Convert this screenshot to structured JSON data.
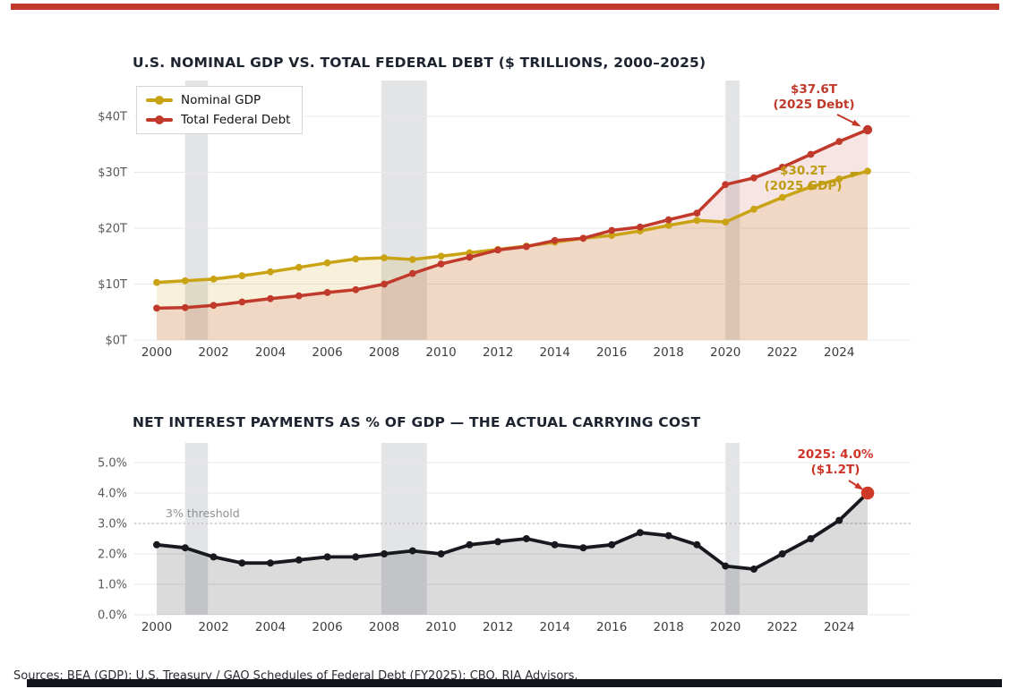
{
  "page": {
    "accent_bar_color": "#c0392b",
    "footer_bar_color": "#14161e"
  },
  "footer": {
    "sources": "Sources: BEA (GDP); U.S. Treasury / GAO Schedules of Federal Debt (FY2025); CBO. RIA Advisors."
  },
  "chart_data": [
    {
      "type": "line",
      "title": "U.S. NOMINAL GDP VS. TOTAL FEDERAL DEBT ($ TRILLIONS, 2000–2025)",
      "x": [
        2000,
        2001,
        2002,
        2003,
        2004,
        2005,
        2006,
        2007,
        2008,
        2009,
        2010,
        2011,
        2012,
        2013,
        2014,
        2015,
        2016,
        2017,
        2018,
        2019,
        2020,
        2021,
        2022,
        2023,
        2024,
        2025
      ],
      "series": [
        {
          "name": "Nominal GDP",
          "color": "#c9a313",
          "fill": "rgba(201,163,19,0.15)",
          "values": [
            10.3,
            10.6,
            10.9,
            11.5,
            12.2,
            13.0,
            13.8,
            14.5,
            14.7,
            14.4,
            15.0,
            15.6,
            16.2,
            16.8,
            17.5,
            18.2,
            18.7,
            19.5,
            20.5,
            21.4,
            21.1,
            23.4,
            25.5,
            27.4,
            28.8,
            30.2
          ]
        },
        {
          "name": "Total Federal Debt",
          "color": "#c0392b",
          "fill": "rgba(192,57,43,0.13)",
          "values": [
            5.7,
            5.8,
            6.2,
            6.8,
            7.4,
            7.9,
            8.5,
            9.0,
            10.0,
            11.9,
            13.6,
            14.8,
            16.1,
            16.7,
            17.8,
            18.2,
            19.6,
            20.2,
            21.5,
            22.7,
            27.8,
            29.0,
            30.9,
            33.2,
            35.5,
            37.6
          ]
        }
      ],
      "ylim": [
        0,
        45
      ],
      "yticks": [
        [
          0,
          "$0T"
        ],
        [
          10,
          "$10T"
        ],
        [
          20,
          "$20T"
        ],
        [
          30,
          "$30T"
        ],
        [
          40,
          "$40T"
        ]
      ],
      "xticks": [
        2000,
        2002,
        2004,
        2006,
        2008,
        2010,
        2012,
        2014,
        2016,
        2018,
        2020,
        2022,
        2024
      ],
      "recession_bands": [
        [
          2001,
          2001.8
        ],
        [
          2007.9,
          2009.5
        ],
        [
          2020,
          2020.5
        ]
      ],
      "band_color": "rgba(168,172,176,0.32)",
      "grid": true,
      "legend_position": "upper left",
      "annotations": {
        "debt": {
          "line1": "$37.6T",
          "line2": "(2025 Debt)",
          "color": "#c0392b"
        },
        "gdp": {
          "line1": "$30.2T",
          "line2": "(2025 GDP)",
          "color": "#bd9b13"
        }
      }
    },
    {
      "type": "line",
      "title": "NET INTEREST PAYMENTS AS % OF GDP — THE ACTUAL CARRYING COST",
      "x": [
        2000,
        2001,
        2002,
        2003,
        2004,
        2005,
        2006,
        2007,
        2008,
        2009,
        2010,
        2011,
        2012,
        2013,
        2014,
        2015,
        2016,
        2017,
        2018,
        2019,
        2020,
        2021,
        2022,
        2023,
        2024,
        2025
      ],
      "series": [
        {
          "name": "Net interest payments as % of GDP",
          "color": "#17191f",
          "fill": "rgba(30,33,40,0.16)",
          "values": [
            2.3,
            2.2,
            1.9,
            1.7,
            1.7,
            1.8,
            1.9,
            1.9,
            2.0,
            2.1,
            2.0,
            2.3,
            2.4,
            2.5,
            2.3,
            2.2,
            2.3,
            2.7,
            2.6,
            2.3,
            1.6,
            1.5,
            2.0,
            2.5,
            3.1,
            4.0
          ]
        }
      ],
      "ylim": [
        0,
        5.5
      ],
      "yticks": [
        [
          0,
          "0.0%"
        ],
        [
          1,
          "1.0%"
        ],
        [
          2,
          "2.0%"
        ],
        [
          3,
          "3.0%"
        ],
        [
          4,
          "4.0%"
        ],
        [
          5,
          "5.0%"
        ]
      ],
      "xticks": [
        2000,
        2002,
        2004,
        2006,
        2008,
        2010,
        2012,
        2014,
        2016,
        2018,
        2020,
        2022,
        2024
      ],
      "recession_bands": [
        [
          2001,
          2001.8
        ],
        [
          2007.9,
          2009.5
        ],
        [
          2020,
          2020.5
        ]
      ],
      "band_color": "rgba(168,172,176,0.32)",
      "grid": true,
      "threshold": {
        "value": 3.0,
        "label": "3% threshold"
      },
      "endpoint_color": "#cf3a28",
      "annotation": {
        "line1": "2025: 4.0%",
        "line2": "($1.2T)",
        "color": "#cf3428"
      }
    }
  ]
}
